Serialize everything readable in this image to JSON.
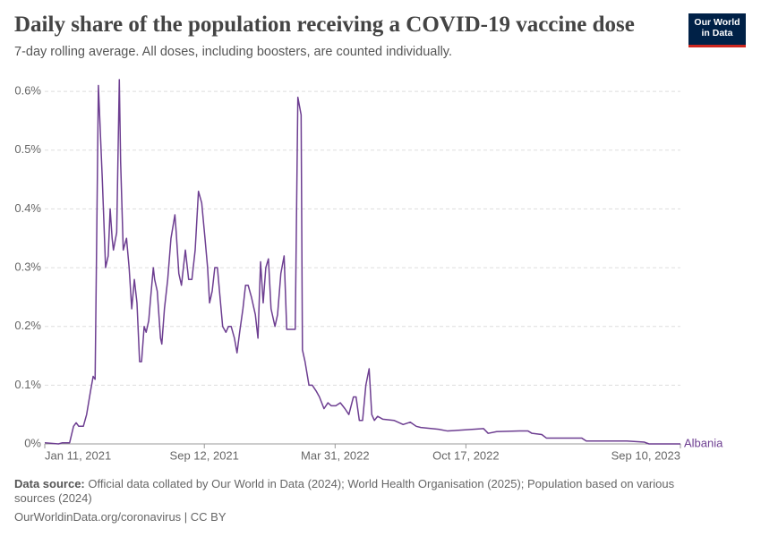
{
  "header": {
    "title": "Daily share of the population receiving a COVID-19 vaccine dose",
    "subtitle": "7-day rolling average. All doses, including boosters, are counted individually.",
    "logo": [
      "Our World",
      "in Data"
    ]
  },
  "footer": {
    "source_label": "Data source:",
    "source": "Official data collated by Our World in Data (2024); World Health Organisation (2025); Population based on various sources (2024)",
    "credit": "OurWorldinData.org/coronavirus | CC BY"
  },
  "chart_data": {
    "type": "line",
    "x": [
      "2021-01-11",
      "2021-02-01",
      "2021-02-07",
      "2021-02-18",
      "2021-02-24",
      "2021-02-28",
      "2021-03-04",
      "2021-03-11",
      "2021-03-16",
      "2021-03-22",
      "2021-03-26",
      "2021-03-29",
      "2021-04-03",
      "2021-04-09",
      "2021-04-14",
      "2021-04-18",
      "2021-04-21",
      "2021-04-24",
      "2021-04-26",
      "2021-05-01",
      "2021-05-05",
      "2021-05-07",
      "2021-05-11",
      "2021-05-16",
      "2021-05-20",
      "2021-05-24",
      "2021-05-28",
      "2021-06-01",
      "2021-06-05",
      "2021-06-08",
      "2021-06-12",
      "2021-06-15",
      "2021-06-19",
      "2021-06-22",
      "2021-06-26",
      "2021-06-28",
      "2021-07-02",
      "2021-07-07",
      "2021-07-09",
      "2021-07-13",
      "2021-07-18",
      "2021-07-23",
      "2021-07-29",
      "2021-07-31",
      "2021-08-04",
      "2021-08-08",
      "2021-08-14",
      "2021-08-19",
      "2021-08-24",
      "2021-08-29",
      "2021-09-03",
      "2021-09-08",
      "2021-09-13",
      "2021-09-17",
      "2021-09-20",
      "2021-09-24",
      "2021-09-28",
      "2021-10-02",
      "2021-10-06",
      "2021-10-10",
      "2021-10-15",
      "2021-10-19",
      "2021-10-23",
      "2021-10-28",
      "2021-11-01",
      "2021-11-05",
      "2021-11-10",
      "2021-11-14",
      "2021-11-18",
      "2021-11-23",
      "2021-11-29",
      "2021-12-03",
      "2021-12-07",
      "2021-12-11",
      "2021-12-15",
      "2021-12-19",
      "2021-12-23",
      "2021-12-29",
      "2022-01-02",
      "2022-01-07",
      "2022-01-12",
      "2022-01-16",
      "2022-01-29",
      "2022-02-02",
      "2022-02-07",
      "2022-02-09",
      "2022-02-13",
      "2022-02-19",
      "2022-02-24",
      "2022-03-02",
      "2022-03-07",
      "2022-03-14",
      "2022-03-20",
      "2022-03-25",
      "2022-04-01",
      "2022-04-08",
      "2022-04-15",
      "2022-04-21",
      "2022-04-28",
      "2022-05-02",
      "2022-05-07",
      "2022-05-12",
      "2022-05-17",
      "2022-05-22",
      "2022-05-26",
      "2022-05-30",
      "2022-06-04",
      "2022-06-12",
      "2022-06-29",
      "2022-07-13",
      "2022-07-24",
      "2022-08-02",
      "2022-08-09",
      "2022-09-05",
      "2022-09-19",
      "2022-10-16",
      "2022-11-13",
      "2022-11-20",
      "2022-12-03",
      "2023-01-07",
      "2023-01-20",
      "2023-01-26",
      "2023-02-10",
      "2023-02-17",
      "2023-04-12",
      "2023-04-19",
      "2023-06-20",
      "2023-07-17",
      "2023-07-24",
      "2023-09-10"
    ],
    "series": [
      {
        "name": "Albania",
        "color": "#6d3e91",
        "values": [
          0.002,
          0,
          0.002,
          0.002,
          0.03,
          0.036,
          0.03,
          0.03,
          0.05,
          0.09,
          0.115,
          0.11,
          0.61,
          0.45,
          0.3,
          0.32,
          0.4,
          0.35,
          0.33,
          0.36,
          0.62,
          0.48,
          0.33,
          0.35,
          0.3,
          0.23,
          0.28,
          0.24,
          0.14,
          0.14,
          0.2,
          0.19,
          0.21,
          0.25,
          0.3,
          0.28,
          0.26,
          0.18,
          0.17,
          0.23,
          0.28,
          0.35,
          0.39,
          0.36,
          0.29,
          0.27,
          0.33,
          0.28,
          0.28,
          0.33,
          0.43,
          0.41,
          0.35,
          0.3,
          0.24,
          0.26,
          0.3,
          0.3,
          0.25,
          0.2,
          0.19,
          0.2,
          0.2,
          0.18,
          0.155,
          0.19,
          0.23,
          0.27,
          0.27,
          0.25,
          0.22,
          0.18,
          0.31,
          0.24,
          0.3,
          0.315,
          0.23,
          0.2,
          0.22,
          0.29,
          0.32,
          0.195,
          0.195,
          0.59,
          0.56,
          0.16,
          0.14,
          0.1,
          0.1,
          0.09,
          0.08,
          0.06,
          0.07,
          0.065,
          0.065,
          0.07,
          0.06,
          0.05,
          0.08,
          0.08,
          0.04,
          0.04,
          0.1,
          0.128,
          0.05,
          0.04,
          0.047,
          0.042,
          0.04,
          0.033,
          0.037,
          0.03,
          0.028,
          0.025,
          0.022,
          0.024,
          0.026,
          0.018,
          0.021,
          0.022,
          0.022,
          0.018,
          0.016,
          0.01,
          0.01,
          0.005,
          0.005,
          0.003,
          0,
          0
        ]
      }
    ],
    "xlim": [
      "2021-01-11",
      "2023-09-10"
    ],
    "xticks": [
      {
        "value": "2021-01-11",
        "label": "Jan 11, 2021"
      },
      {
        "value": "2021-09-12",
        "label": "Sep 12, 2021"
      },
      {
        "value": "2022-03-31",
        "label": "Mar 31, 2022"
      },
      {
        "value": "2022-10-17",
        "label": "Oct 17, 2022"
      },
      {
        "value": "2023-09-10",
        "label": "Sep 10, 2023"
      }
    ],
    "ylim": [
      0,
      0.62
    ],
    "yticks": [
      {
        "value": 0,
        "label": "0%"
      },
      {
        "value": 0.1,
        "label": "0.1%"
      },
      {
        "value": 0.2,
        "label": "0.2%"
      },
      {
        "value": 0.3,
        "label": "0.3%"
      },
      {
        "value": 0.4,
        "label": "0.4%"
      },
      {
        "value": 0.5,
        "label": "0.5%"
      },
      {
        "value": 0.6,
        "label": "0.6%"
      }
    ],
    "grid": true
  }
}
